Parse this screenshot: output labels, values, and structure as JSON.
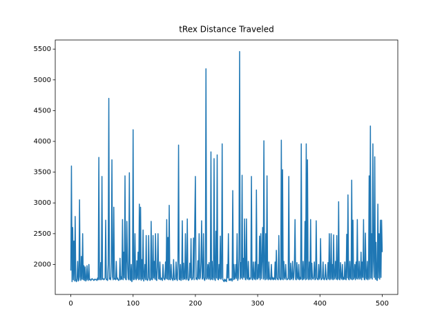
{
  "chart_data": {
    "type": "line",
    "title": "tRex Distance Traveled",
    "x": [
      0,
      1,
      2,
      3,
      4,
      5,
      6,
      7,
      8,
      9,
      10,
      11,
      12,
      13,
      14,
      15,
      16,
      17,
      18,
      19,
      20,
      21,
      22,
      23,
      24,
      25,
      26,
      27,
      28,
      29,
      30,
      31,
      32,
      33,
      34,
      35,
      36,
      37,
      38,
      39,
      40,
      41,
      42,
      43,
      44,
      45,
      46,
      47,
      48,
      49,
      50,
      51,
      52,
      53,
      54,
      55,
      56,
      57,
      58,
      59,
      60,
      61,
      62,
      63,
      64,
      65,
      66,
      67,
      68,
      69,
      70,
      71,
      72,
      73,
      74,
      75,
      76,
      77,
      78,
      79,
      80,
      81,
      82,
      83,
      84,
      85,
      86,
      87,
      88,
      89,
      90,
      91,
      92,
      93,
      94,
      95,
      96,
      97,
      98,
      99,
      100,
      101,
      102,
      103,
      104,
      105,
      106,
      107,
      108,
      109,
      110,
      111,
      112,
      113,
      114,
      115,
      116,
      117,
      118,
      119,
      120,
      121,
      122,
      123,
      124,
      125,
      126,
      127,
      128,
      129,
      130,
      131,
      132,
      133,
      134,
      135,
      136,
      137,
      138,
      139,
      140,
      141,
      142,
      143,
      144,
      145,
      146,
      147,
      148,
      149,
      150,
      151,
      152,
      153,
      154,
      155,
      156,
      157,
      158,
      159,
      160,
      161,
      162,
      163,
      164,
      165,
      166,
      167,
      168,
      169,
      170,
      171,
      172,
      173,
      174,
      175,
      176,
      177,
      178,
      179,
      180,
      181,
      182,
      183,
      184,
      185,
      186,
      187,
      188,
      189,
      190,
      191,
      192,
      193,
      194,
      195,
      196,
      197,
      198,
      199,
      200,
      201,
      202,
      203,
      204,
      205,
      206,
      207,
      208,
      209,
      210,
      211,
      212,
      213,
      214,
      215,
      216,
      217,
      218,
      219,
      220,
      221,
      222,
      223,
      224,
      225,
      226,
      227,
      228,
      229,
      230,
      231,
      232,
      233,
      234,
      235,
      236,
      237,
      238,
      239,
      240,
      241,
      242,
      243,
      244,
      245,
      246,
      247,
      248,
      249,
      250,
      251,
      252,
      253,
      254,
      255,
      256,
      257,
      258,
      259,
      260,
      261,
      262,
      263,
      264,
      265,
      266,
      267,
      268,
      269,
      270,
      271,
      272,
      273,
      274,
      275,
      276,
      277,
      278,
      279,
      280,
      281,
      282,
      283,
      284,
      285,
      286,
      287,
      288,
      289,
      290,
      291,
      292,
      293,
      294,
      295,
      296,
      297,
      298,
      299,
      300,
      301,
      302,
      303,
      304,
      305,
      306,
      307,
      308,
      309,
      310,
      311,
      312,
      313,
      314,
      315,
      316,
      317,
      318,
      319,
      320,
      321,
      322,
      323,
      324,
      325,
      326,
      327,
      328,
      329,
      330,
      331,
      332,
      333,
      334,
      335,
      336,
      337,
      338,
      339,
      340,
      341,
      342,
      343,
      344,
      345,
      346,
      347,
      348,
      349,
      350,
      351,
      352,
      353,
      354,
      355,
      356,
      357,
      358,
      359,
      360,
      361,
      362,
      363,
      364,
      365,
      366,
      367,
      368,
      369,
      370,
      371,
      372,
      373,
      374,
      375,
      376,
      377,
      378,
      379,
      380,
      381,
      382,
      383,
      384,
      385,
      386,
      387,
      388,
      389,
      390,
      391,
      392,
      393,
      394,
      395,
      396,
      397,
      398,
      399,
      400,
      401,
      402,
      403,
      404,
      405,
      406,
      407,
      408,
      409,
      410,
      411,
      412,
      413,
      414,
      415,
      416,
      417,
      418,
      419,
      420,
      421,
      422,
      423,
      424,
      425,
      426,
      427,
      428,
      429,
      430,
      431,
      432,
      433,
      434,
      435,
      436,
      437,
      438,
      439,
      440,
      441,
      442,
      443,
      444,
      445,
      446,
      447,
      448,
      449,
      450,
      451,
      452,
      453,
      454,
      455,
      456,
      457,
      458,
      459,
      460,
      461,
      462,
      463,
      464,
      465,
      466,
      467,
      468,
      469,
      470,
      471,
      472,
      473,
      474,
      475,
      476,
      477,
      478,
      479,
      480,
      481,
      482,
      483,
      484,
      485,
      486,
      487,
      488,
      489,
      490,
      491,
      492,
      493,
      494,
      495,
      496,
      497,
      498,
      499,
      500
    ],
    "values": [
      1900,
      3600,
      1720,
      2600,
      1750,
      2380,
      1730,
      2780,
      1740,
      1720,
      1760,
      2050,
      1730,
      1750,
      3050,
      1800,
      1740,
      2130,
      1760,
      2500,
      1750,
      1980,
      1740,
      1960,
      1730,
      1750,
      1980,
      1760,
      1740,
      2000,
      1750,
      1760,
      1740,
      1750,
      1770,
      1760,
      1750,
      1740,
      1760,
      1750,
      1760,
      1750,
      1740,
      1780,
      1750,
      3740,
      1760,
      1750,
      2030,
      1750,
      3430,
      1760,
      1770,
      1750,
      1760,
      1780,
      2720,
      1750,
      1760,
      1740,
      2000,
      4700,
      1760,
      1780,
      1750,
      2040,
      3700,
      1800,
      1750,
      2930,
      1760,
      1770,
      1750,
      2050,
      1760,
      1780,
      1750,
      1740,
      1760,
      2100,
      1750,
      1800,
      1760,
      2730,
      1750,
      2200,
      1780,
      3440,
      1760,
      1750,
      2700,
      2050,
      1780,
      1750,
      3490,
      1760,
      1740,
      2000,
      1720,
      1770,
      4190,
      1750,
      1760,
      2500,
      1780,
      1750,
      2060,
      1770,
      2200,
      1750,
      2980,
      1760,
      2930,
      1740,
      2080,
      1760,
      2560,
      1730,
      1780,
      2000,
      1750,
      2470,
      1760,
      1740,
      1760,
      2470,
      1790,
      1740,
      1750,
      2700,
      1760,
      1750,
      2470,
      1780,
      2050,
      1760,
      2500,
      1750,
      1740,
      2000,
      2500,
      1770,
      1760,
      2040,
      1750,
      1780,
      1760,
      1740,
      2000,
      1780,
      1760,
      1750,
      2040,
      1770,
      2730,
      1760,
      2440,
      1750,
      2960,
      1760,
      1750,
      2000,
      1780,
      1760,
      1740,
      2080,
      1760,
      1750,
      1770,
      2040,
      1760,
      1740,
      2050,
      3940,
      1760,
      1750,
      2000,
      1740,
      1780,
      2710,
      1750,
      2020,
      1760,
      1770,
      2500,
      1750,
      1780,
      2740,
      1760,
      1740,
      1760,
      2020,
      1780,
      2420,
      1750,
      1760,
      1790,
      2430,
      1750,
      2700,
      3430,
      1760,
      1780,
      1750,
      2060,
      1770,
      2500,
      1760,
      1790,
      2040,
      2710,
      1760,
      1780,
      2500,
      1760,
      1740,
      1790,
      5180,
      1760,
      1780,
      2000,
      1760,
      2030,
      1780,
      1750,
      3830,
      1760,
      2050,
      1750,
      1790,
      3720,
      1760,
      1740,
      2540,
      1780,
      3780,
      1760,
      1750,
      2000,
      1770,
      2460,
      1760,
      1790,
      3960,
      1750,
      1740,
      1720,
      1760,
      1730,
      1750,
      1720,
      2000,
      1780,
      2500,
      1740,
      1760,
      1740,
      1770,
      1750,
      1730,
      3200,
      1750,
      2000,
      1760,
      1790,
      2000,
      1770,
      2500,
      1740,
      1780,
      2100,
      5460,
      1760,
      2030,
      1780,
      3450,
      1760,
      2100,
      1790,
      2740,
      1760,
      1750,
      2740,
      1780,
      1760,
      2050,
      1750,
      1780,
      1760,
      1790,
      3430,
      1760,
      1750,
      2040,
      1780,
      1760,
      2040,
      1750,
      3210,
      1770,
      1760,
      2000,
      1780,
      2460,
      1750,
      2500,
      1770,
      2050,
      2600,
      1760,
      4010,
      1780,
      1750,
      2500,
      1760,
      3440,
      1780,
      1750,
      2040,
      1760,
      1780,
      1750,
      2000,
      1760,
      1790,
      1750,
      1780,
      1760,
      2040,
      1750,
      2230,
      1780,
      1760,
      1750,
      2470,
      1790,
      1760,
      1750,
      4020,
      1760,
      3540,
      1750,
      2050,
      1780,
      1760,
      2000,
      1790,
      1750,
      1760,
      1770,
      3430,
      1760,
      1750,
      2020,
      1760,
      1780,
      2050,
      1750,
      1790,
      2000,
      2730,
      1760,
      1750,
      2030,
      1780,
      1760,
      2000,
      1750,
      1790,
      1760,
      3960,
      1770,
      1750,
      2050,
      1760,
      1780,
      2700,
      1750,
      3960,
      1760,
      3700,
      1780,
      1750,
      2040,
      1760,
      2730,
      1750,
      2020,
      1780,
      1760,
      1790,
      2040,
      1750,
      1760,
      2710,
      1780,
      1760,
      1750,
      2000,
      1760,
      1790,
      2420,
      1750,
      1760,
      1780,
      2040,
      1760,
      1750,
      1790,
      2000,
      1760,
      1750,
      1780,
      2030,
      1760,
      2500,
      1750,
      1780,
      2500,
      1760,
      2000,
      1750,
      2480,
      1760,
      1790,
      2050,
      1760,
      2470,
      1750,
      1780,
      3020,
      1760,
      1750,
      2030,
      1780,
      1760,
      2000,
      1750,
      1790,
      1760,
      2040,
      1760,
      1750,
      2490,
      1780,
      3130,
      1760,
      1750,
      2050,
      1780,
      1760,
      3370,
      1750,
      2720,
      1760,
      1780,
      2000,
      1750,
      2040,
      1770,
      2730,
      1760,
      1790,
      2050,
      1760,
      1780,
      2200,
      1750,
      2040,
      1790,
      2730,
      1760,
      1750,
      2510,
      1780,
      1760,
      2050,
      1750,
      1790,
      3440,
      1760,
      4250,
      1780,
      2500,
      1760,
      3960,
      2050,
      1790,
      3750,
      1760,
      2360,
      1750,
      1740,
      2980,
      1780,
      2500,
      1760,
      2720,
      1790,
      2720,
      2200
    ],
    "color": "#1f77b4",
    "xlim": [
      -25,
      525
    ],
    "xticks": [
      0,
      100,
      200,
      300,
      400,
      500
    ],
    "ylim": [
      1512,
      5648
    ],
    "yticks": [
      2000,
      2500,
      3000,
      3500,
      4000,
      4500,
      5000,
      5500
    ],
    "grid": false
  }
}
